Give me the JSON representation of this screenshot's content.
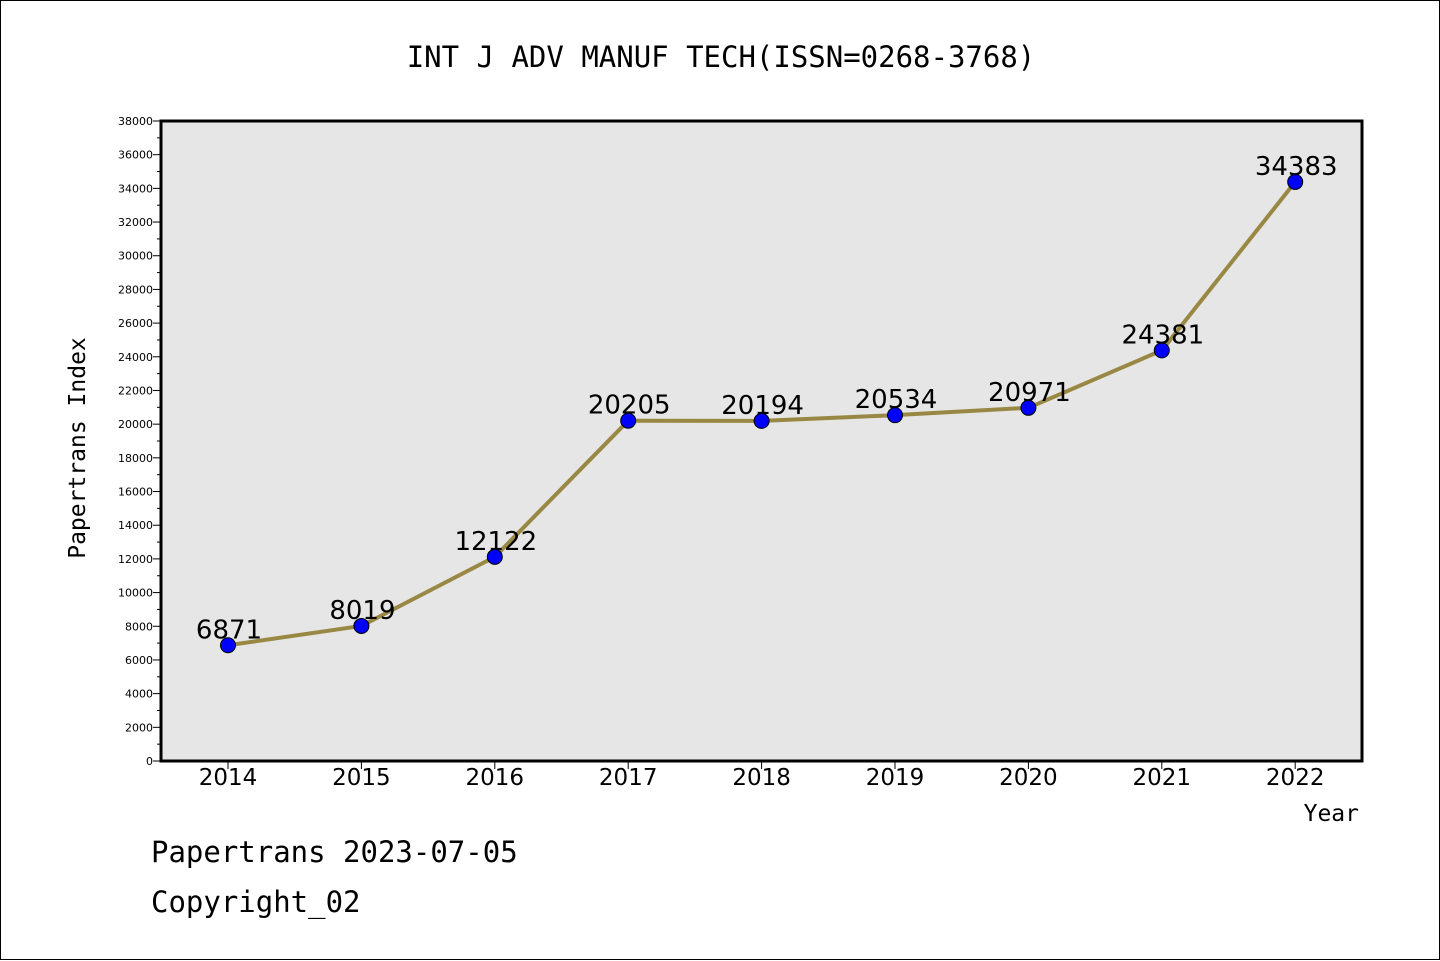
{
  "chart_data": {
    "type": "line",
    "title": "INT J ADV MANUF TECH(ISSN=0268-3768)",
    "xlabel": "Year",
    "ylabel": "Papertrans Index",
    "categories": [
      "2014",
      "2015",
      "2016",
      "2017",
      "2018",
      "2019",
      "2020",
      "2021",
      "2022"
    ],
    "series": [
      {
        "values": [
          6871,
          8019,
          12122,
          20205,
          20194,
          20534,
          20971,
          24381,
          34383
        ]
      }
    ],
    "ylim": [
      0,
      38000
    ],
    "yticks": [
      0,
      2000,
      4000,
      6000,
      8000,
      10000,
      12000,
      14000,
      16000,
      18000,
      20000,
      22000,
      24000,
      26000,
      28000,
      30000,
      32000,
      34000,
      36000,
      38000
    ],
    "grid": false,
    "data_labels": true,
    "colors": {
      "line": "#998844",
      "marker": "#0000ff",
      "plot_background": "#e6e6e6"
    }
  },
  "footer": {
    "line1": "Papertrans 2023-07-05",
    "line2": "Copyright_02"
  }
}
